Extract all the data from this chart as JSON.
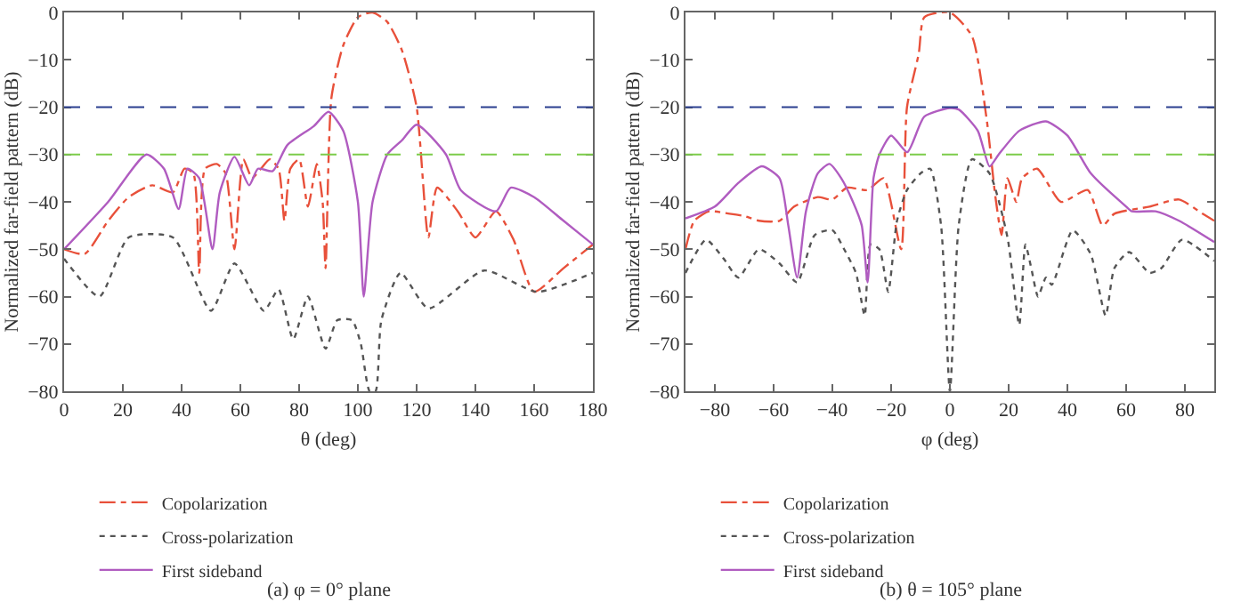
{
  "chart_data": [
    {
      "type": "line",
      "xlabel": "θ (deg)",
      "ylabel": "Normalized far-field pattern (dB)",
      "xlim": [
        0,
        180
      ],
      "xticks": [
        0,
        20,
        40,
        60,
        80,
        100,
        120,
        140,
        160,
        180
      ],
      "ylim": [
        -80,
        0
      ],
      "yticks": [
        {
          "value": -80,
          "label": "−80"
        },
        {
          "value": -70,
          "label": "−70"
        },
        {
          "value": -60,
          "label": "−60"
        },
        {
          "value": -50,
          "label": "−50"
        },
        {
          "value": -40,
          "label": "−40"
        },
        {
          "value": -30,
          "label": "−30"
        },
        {
          "value": -20,
          "label": "−20"
        },
        {
          "value": -10,
          "label": "−10"
        },
        0
      ],
      "grid": false,
      "legend": "bottom",
      "marker": "none",
      "series": [
        {
          "name": "Copolarization",
          "color": "#e8503a",
          "line_style": "dashdot",
          "x": [
            0,
            7,
            15,
            22,
            30,
            37,
            41,
            44,
            46,
            48,
            52,
            55,
            58,
            61,
            64,
            67,
            70,
            73,
            75,
            77,
            80,
            83,
            86,
            88,
            89,
            91,
            95,
            100,
            105,
            110,
            115,
            120,
            124,
            127,
            134,
            140,
            147,
            153,
            160,
            170,
            180
          ],
          "values": [
            -50,
            -51,
            -44,
            -39,
            -36.5,
            -38,
            -33,
            -34,
            -55,
            -33,
            -32,
            -34,
            -50,
            -31,
            -35,
            -33,
            -31,
            -33,
            -44,
            -33,
            -31,
            -41,
            -32,
            -40,
            -54,
            -18,
            -7,
            -1,
            0,
            -2,
            -8,
            -20,
            -47.5,
            -37,
            -42,
            -47.5,
            -42,
            -48,
            -59,
            -54,
            -49
          ]
        },
        {
          "name": "Cross-polarization",
          "color": "#555555",
          "line_style": "dotted",
          "x": [
            0,
            12,
            22,
            37,
            50,
            58,
            68,
            73,
            78,
            83,
            89,
            93,
            98,
            101,
            104,
            106,
            108,
            114.5,
            124,
            143,
            161,
            180
          ],
          "values": [
            -52,
            -60,
            -47.5,
            -47.5,
            -63,
            -53,
            -63,
            -58.5,
            -69,
            -60,
            -71,
            -65,
            -65,
            -70,
            -80,
            -80,
            -65,
            -55,
            -62.5,
            -54.5,
            -59,
            -55
          ]
        },
        {
          "name": "First sideband",
          "color": "#b05cc0",
          "line_style": "solid",
          "x": [
            0,
            15,
            28,
            34,
            39,
            42,
            46,
            50.5,
            53,
            58,
            63,
            66,
            71,
            76,
            85,
            90,
            95,
            100,
            102,
            105,
            110,
            115,
            120,
            130,
            135,
            147,
            152,
            160,
            170,
            180
          ],
          "values": [
            -50,
            -40,
            -30,
            -33,
            -41.5,
            -33,
            -35,
            -50,
            -38,
            -30.5,
            -36.5,
            -33,
            -33.5,
            -28,
            -24,
            -21,
            -25,
            -40,
            -60,
            -40,
            -30,
            -27,
            -23.7,
            -30,
            -37.5,
            -42,
            -37,
            -39,
            -44,
            -49
          ]
        }
      ],
      "ref_lines": [
        {
          "axis": "y",
          "value": -20,
          "color": "#2b3f8f",
          "line_style": "dashed"
        },
        {
          "axis": "y",
          "value": -30,
          "color": "#7ccc4a",
          "line_style": "dashed"
        }
      ],
      "annotations": [
        "(a) φ = 0° plane"
      ]
    },
    {
      "type": "line",
      "xlabel": "φ (deg)",
      "ylabel": "Normalized far-field pattern (dB)",
      "xlim": [
        -90,
        90
      ],
      "xticks": [
        {
          "value": -80,
          "label": "−80"
        },
        {
          "value": -60,
          "label": "−60"
        },
        {
          "value": -40,
          "label": "−40"
        },
        {
          "value": -20,
          "label": "−20"
        },
        0,
        20,
        40,
        60,
        80
      ],
      "ylim": [
        -80,
        0
      ],
      "yticks": [
        {
          "value": -80,
          "label": "−80"
        },
        {
          "value": -70,
          "label": "−70"
        },
        {
          "value": -60,
          "label": "−60"
        },
        {
          "value": -50,
          "label": "−50"
        },
        {
          "value": -40,
          "label": "−40"
        },
        {
          "value": -30,
          "label": "−30"
        },
        {
          "value": -20,
          "label": "−20"
        },
        {
          "value": -10,
          "label": "−10"
        },
        0
      ],
      "grid": false,
      "legend": "bottom",
      "marker": "none",
      "series": [
        {
          "name": "Copolarization",
          "color": "#e8503a",
          "line_style": "dashdot",
          "x": [
            -90,
            -87,
            -82,
            -75,
            -70,
            -65,
            -58,
            -53,
            -45,
            -40,
            -35,
            -28,
            -22.6,
            -16.6,
            -14.6,
            -10.6,
            -8.7,
            0,
            7.5,
            12.5,
            15.5,
            17.6,
            19.6,
            22.6,
            24.6,
            29.7,
            37.8,
            46.9,
            52,
            56,
            68,
            78,
            86,
            90
          ],
          "values": [
            -50,
            -44,
            -42,
            -42.5,
            -43,
            -44,
            -44,
            -41,
            -39,
            -39.5,
            -37,
            -37.5,
            -35,
            -50,
            -20,
            -8.7,
            -1,
            0,
            -5,
            -22.5,
            -39,
            -47,
            -35,
            -40,
            -35,
            -33,
            -40,
            -37.5,
            -45,
            -42.5,
            -41,
            -39.5,
            -42.5,
            -44
          ]
        },
        {
          "name": "Cross-polarization",
          "color": "#555555",
          "line_style": "dotted",
          "x": [
            -90,
            -83,
            -77,
            -72,
            -65,
            -58,
            -52,
            -46,
            -40,
            -36,
            -32,
            -29,
            -27,
            -24,
            -21,
            -18,
            -14.6,
            -10,
            -6.7,
            -3,
            0,
            3,
            7.5,
            13.5,
            19.6,
            23.6,
            25.7,
            27.7,
            30,
            32.7,
            34.7,
            41.8,
            47.9,
            53,
            56,
            61,
            68,
            72,
            79,
            90
          ],
          "values": [
            -55,
            -48,
            -52,
            -56,
            -50,
            -53,
            -57,
            -47,
            -46,
            -50,
            -55,
            -64,
            -49,
            -50,
            -59,
            -44,
            -37.5,
            -34,
            -33,
            -45,
            -80,
            -45,
            -31,
            -34,
            -47.5,
            -66,
            -49,
            -54,
            -60,
            -56,
            -57.5,
            -46,
            -51,
            -64,
            -54,
            -50.6,
            -55,
            -54,
            -48,
            -52.5
          ]
        },
        {
          "name": "First sideband",
          "color": "#b05cc0",
          "line_style": "solid",
          "x": [
            -90,
            -80,
            -72,
            -64,
            -58,
            -55,
            -52,
            -49,
            -45,
            -41,
            -37,
            -33,
            -30,
            -28,
            -26,
            -24,
            -20,
            -14.5,
            -8.7,
            0,
            3,
            9.5,
            13.5,
            16.6,
            23.6,
            32.7,
            40,
            48,
            60,
            62,
            70,
            78,
            90
          ],
          "values": [
            -43.5,
            -41,
            -36,
            -32.5,
            -35,
            -45,
            -56,
            -42,
            -34,
            -32,
            -35,
            -40,
            -45,
            -57,
            -35,
            -30,
            -26,
            -29.5,
            -22,
            -20.2,
            -20.5,
            -25,
            -32.5,
            -30,
            -25,
            -23,
            -26,
            -34,
            -41,
            -42,
            -42,
            -44,
            -48.5
          ]
        }
      ],
      "ref_lines": [
        {
          "axis": "y",
          "value": -20,
          "color": "#2b3f8f",
          "line_style": "dashed"
        },
        {
          "axis": "y",
          "value": -30,
          "color": "#7ccc4a",
          "line_style": "dashed"
        }
      ],
      "annotations": [
        "(b) θ = 105° plane"
      ]
    }
  ]
}
